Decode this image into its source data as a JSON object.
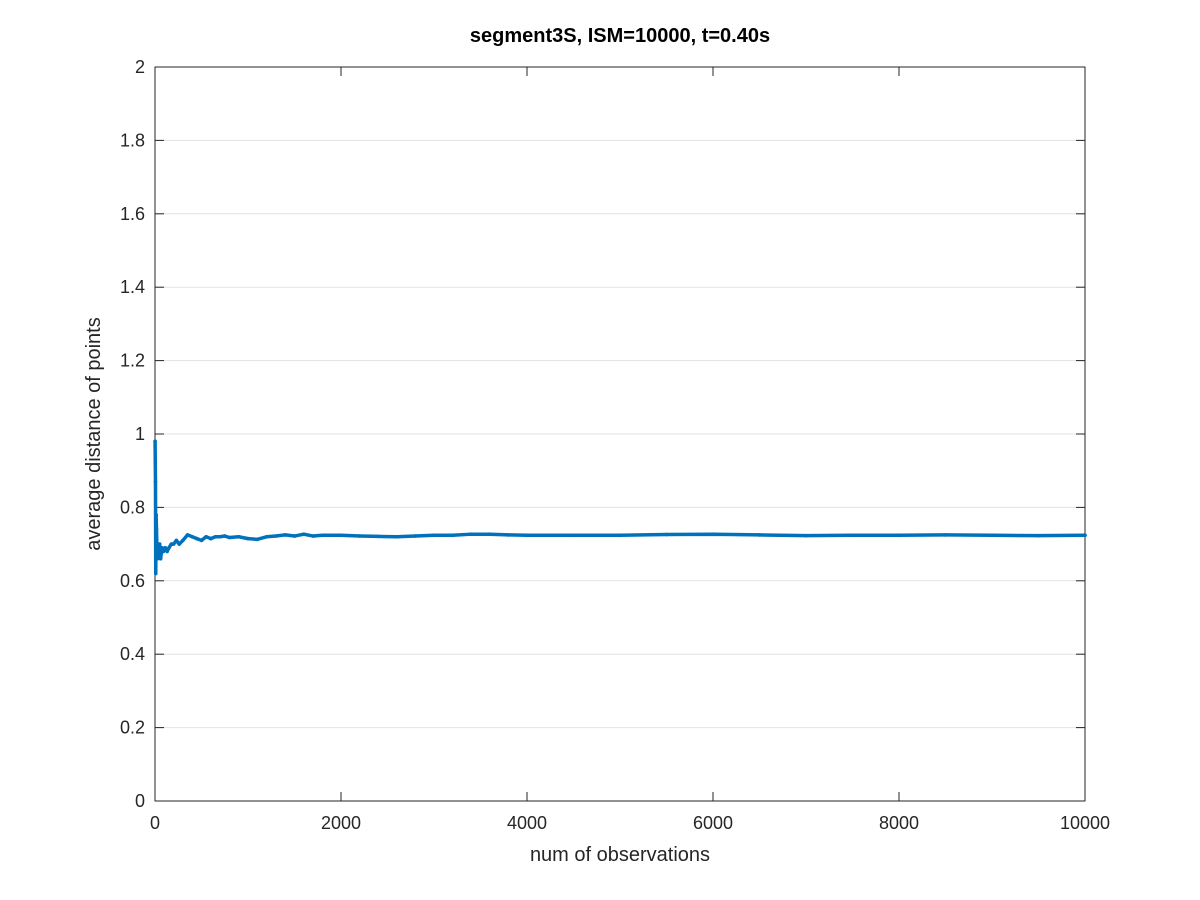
{
  "chart_data": {
    "type": "scatter",
    "title": "segment3S, ISM=10000, t=0.40s",
    "xlabel": "num of observations",
    "ylabel": "average distance of points",
    "xlim": [
      0,
      10000
    ],
    "ylim": [
      0,
      2
    ],
    "x_ticks": [
      0,
      2000,
      4000,
      6000,
      8000,
      10000
    ],
    "y_ticks": [
      0,
      0.2,
      0.4,
      0.6,
      0.8,
      1,
      1.2,
      1.4,
      1.6,
      1.8,
      2
    ],
    "x_tick_labels": [
      "0",
      "2000",
      "4000",
      "6000",
      "8000",
      "10000"
    ],
    "y_tick_labels": [
      "0",
      "0.2",
      "0.4",
      "0.6",
      "0.8",
      "1",
      "1.2",
      "1.4",
      "1.6",
      "1.8",
      "2"
    ],
    "grid": "horizontal",
    "legend": "none",
    "marker_color": "#0072BD",
    "series": [
      {
        "x": [
          1,
          3,
          5,
          8,
          12,
          16,
          20,
          25,
          30,
          40,
          50,
          60,
          75,
          90,
          110,
          130,
          150,
          175,
          200,
          230,
          260,
          300,
          350,
          400,
          450,
          500,
          550,
          600,
          650,
          700,
          750,
          800,
          900,
          1000,
          1100,
          1200,
          1300,
          1400,
          1500,
          1600,
          1700,
          1800,
          2000,
          2200,
          2400,
          2600,
          2800,
          3000,
          3200,
          3400,
          3600,
          3800,
          4000,
          4500,
          5000,
          5500,
          6000,
          6500,
          7000,
          7500,
          8000,
          8500,
          9000,
          9500,
          10000
        ],
        "y": [
          0.98,
          0.92,
          0.87,
          0.62,
          0.78,
          0.74,
          0.7,
          0.66,
          0.69,
          0.67,
          0.7,
          0.66,
          0.69,
          0.68,
          0.69,
          0.68,
          0.69,
          0.7,
          0.7,
          0.71,
          0.7,
          0.71,
          0.725,
          0.72,
          0.715,
          0.71,
          0.72,
          0.715,
          0.72,
          0.72,
          0.722,
          0.718,
          0.72,
          0.715,
          0.713,
          0.72,
          0.722,
          0.725,
          0.722,
          0.727,
          0.722,
          0.724,
          0.724,
          0.722,
          0.721,
          0.72,
          0.722,
          0.724,
          0.724,
          0.727,
          0.727,
          0.725,
          0.724,
          0.724,
          0.724,
          0.726,
          0.727,
          0.725,
          0.723,
          0.724,
          0.724,
          0.725,
          0.724,
          0.723,
          0.724
        ]
      }
    ]
  }
}
